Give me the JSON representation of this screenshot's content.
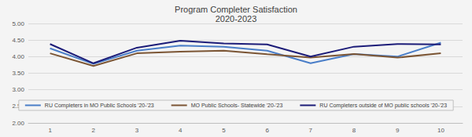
{
  "chart_data": {
    "type": "line",
    "title": "Program Completer Satisfaction",
    "subtitle": "2020-2023",
    "categories": [
      "1",
      "2",
      "3",
      "4",
      "5",
      "6",
      "7",
      "8",
      "9",
      "10"
    ],
    "series": [
      {
        "name": "RU Completers in MO Public Schools '20-'23",
        "color": "#4a7ec8",
        "values": [
          4.25,
          3.78,
          4.18,
          4.33,
          4.3,
          4.18,
          3.8,
          4.08,
          4.0,
          4.42
        ]
      },
      {
        "name": "MO Public Schools- Statewide '20-'23",
        "color": "#7b5534",
        "values": [
          4.1,
          3.72,
          4.1,
          4.15,
          4.18,
          4.07,
          3.97,
          4.08,
          3.97,
          4.1
        ]
      },
      {
        "name": "RU Completers outside of MO public schools '20-'23",
        "color": "#1c1c78",
        "values": [
          4.38,
          3.8,
          4.27,
          4.48,
          4.4,
          4.37,
          4.0,
          4.3,
          4.38,
          4.37
        ]
      }
    ],
    "ylim": [
      2,
      5
    ],
    "yticks": [
      {
        "value": 2,
        "label": "2.00"
      },
      {
        "value": 2.5,
        "label": "2.50"
      },
      {
        "value": 3,
        "label": "3.00"
      },
      {
        "value": 3.5,
        "label": "3.50"
      },
      {
        "value": 4,
        "label": "4.00"
      },
      {
        "value": 4.5,
        "label": "4.50"
      },
      {
        "value": 5,
        "label": "5.00"
      }
    ],
    "grid": true,
    "legend": "bottom"
  }
}
